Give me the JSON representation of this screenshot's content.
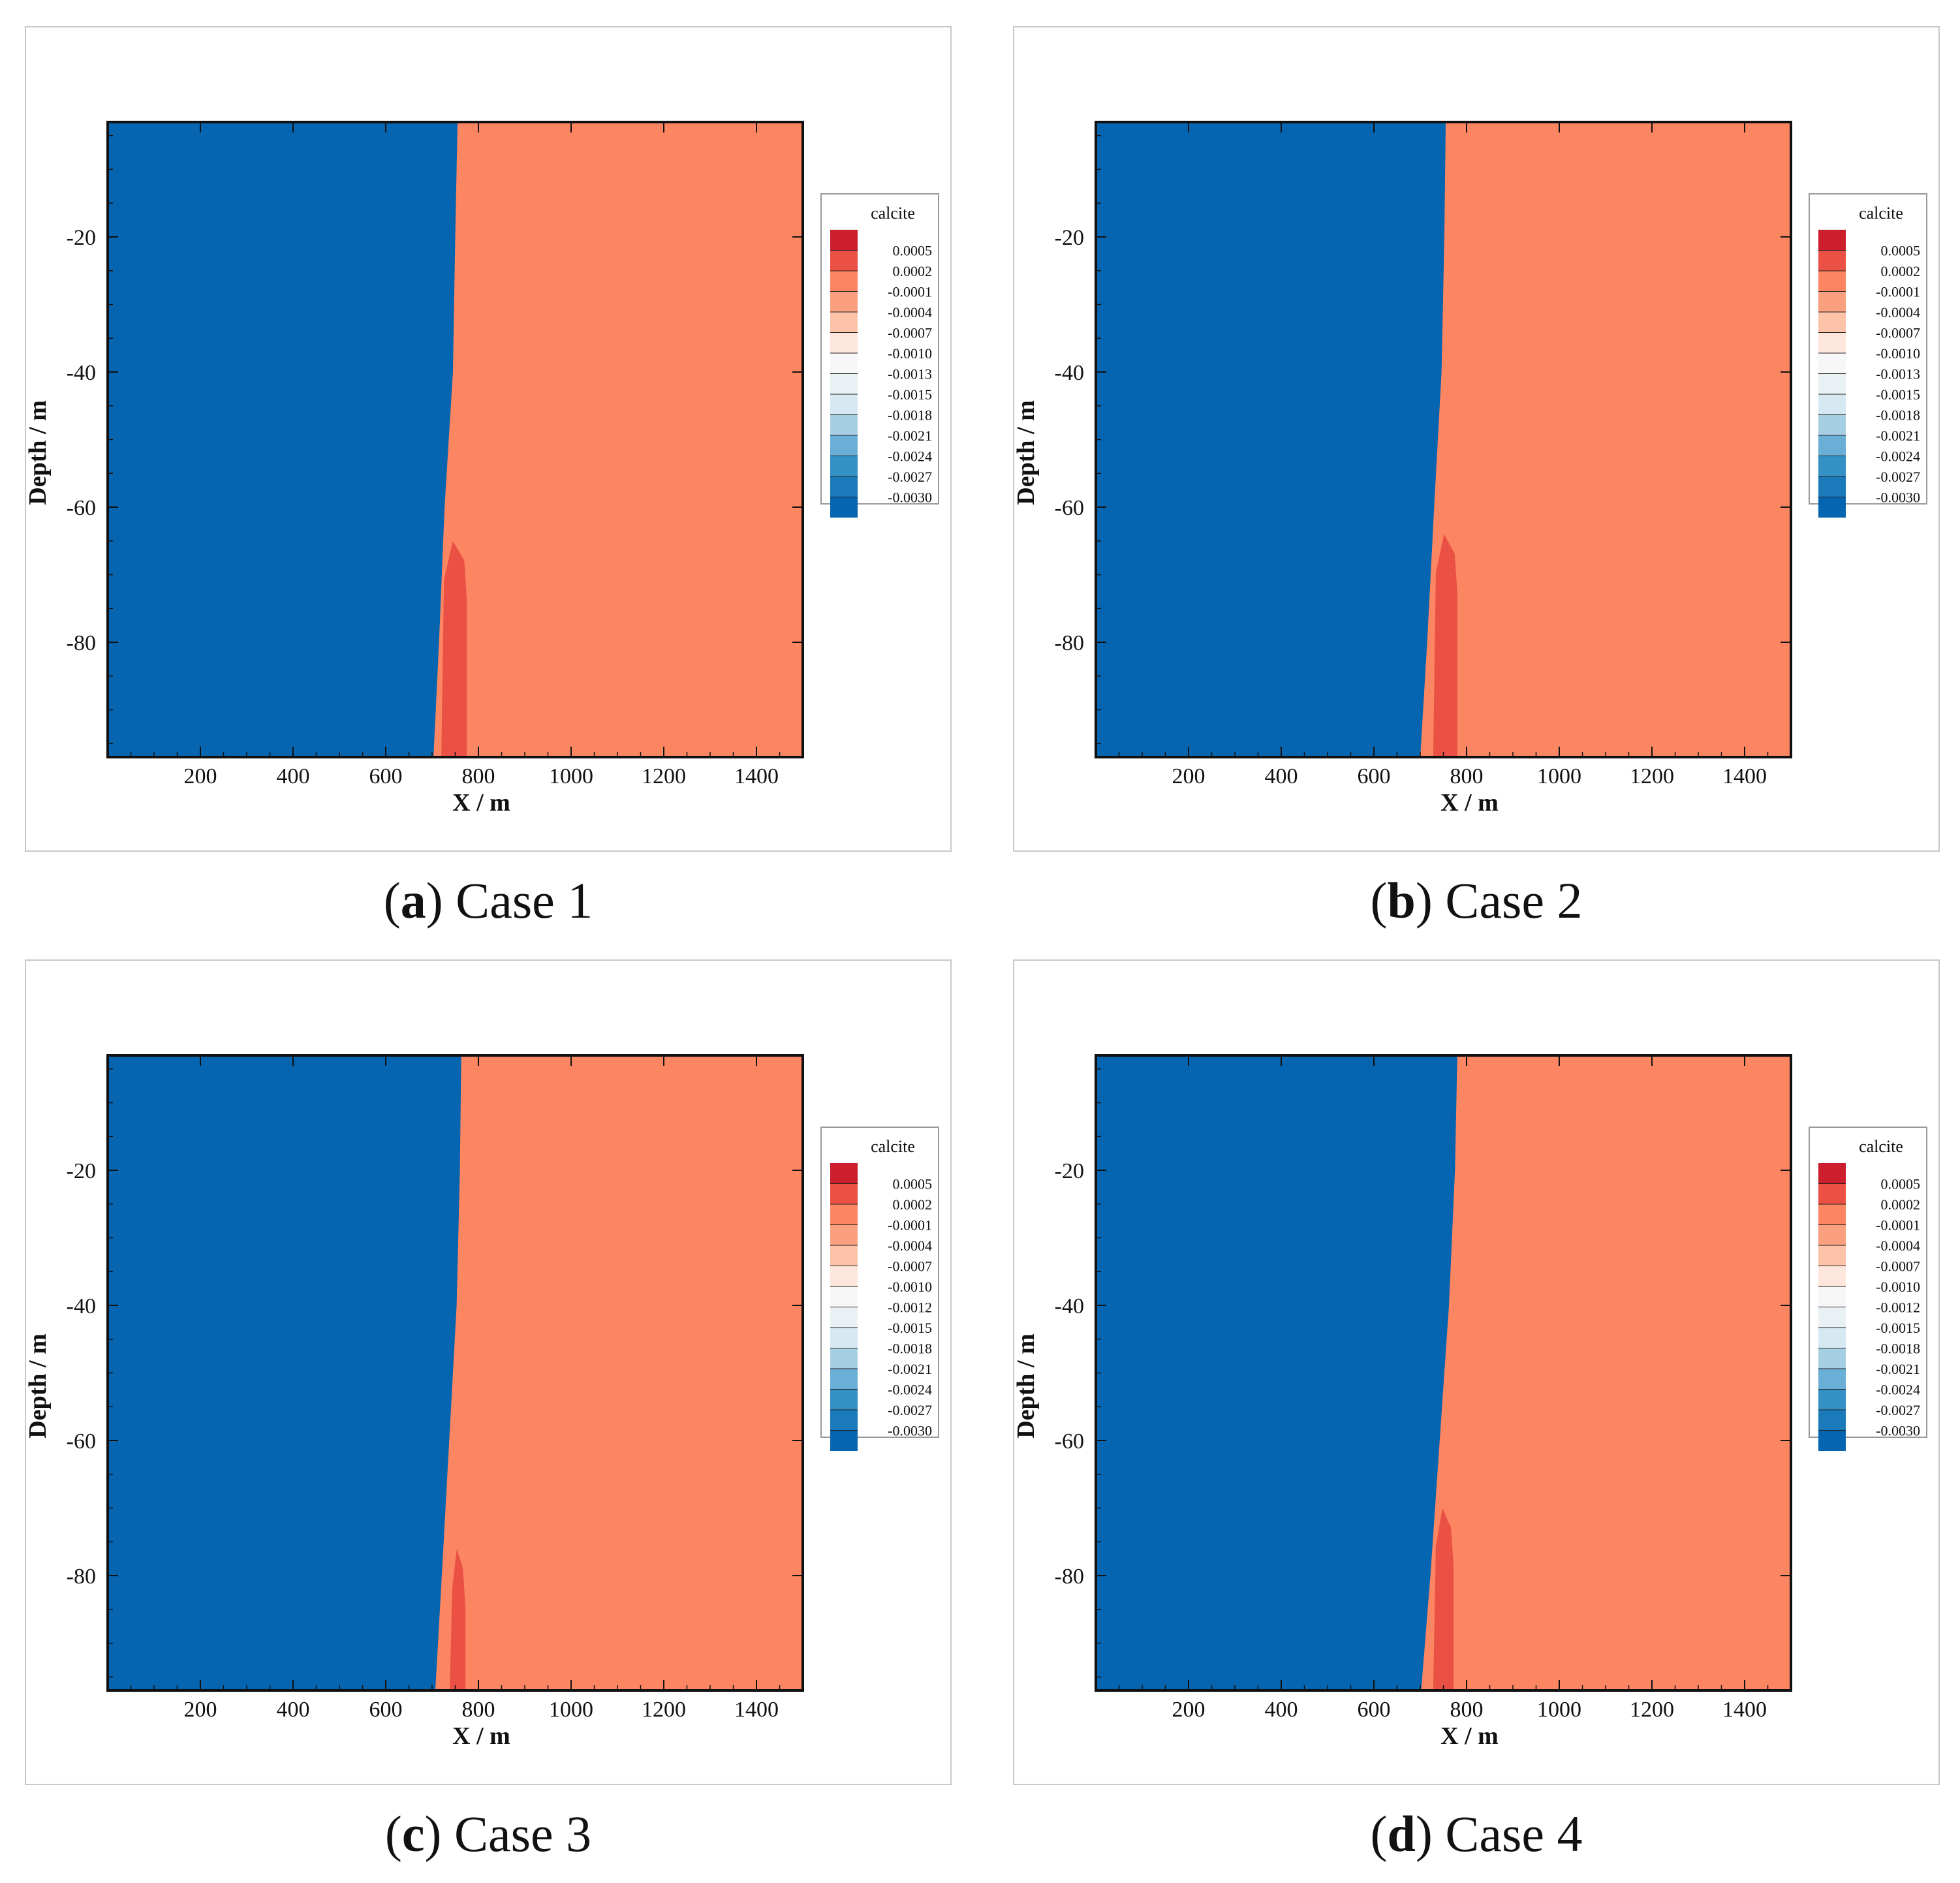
{
  "chart_data": [
    {
      "type": "heatmap",
      "variable": "calcite",
      "caption_letter": "a",
      "caption_text": " Case 1",
      "xlabel": "X / m",
      "ylabel": "Depth / m",
      "xlim": [
        0,
        1500
      ],
      "ylim": [
        -97,
        -3
      ],
      "xticks": [
        200,
        400,
        600,
        800,
        1000,
        1200,
        1400
      ],
      "yticks": [
        -20,
        -40,
        -60,
        -80
      ],
      "front_profile": [
        {
          "depth": -3,
          "x": 700
        },
        {
          "depth": -20,
          "x": 695
        },
        {
          "depth": -40,
          "x": 690
        },
        {
          "depth": -60,
          "x": 672
        },
        {
          "depth": -80,
          "x": 660
        },
        {
          "depth": -97,
          "x": 648
        }
      ],
      "front_halfwidth": 55,
      "high_zone": {
        "x_left": 720,
        "x_right": 775,
        "top_depth": -65,
        "bottom_depth": -97
      },
      "legend": {
        "title": "calcite",
        "levels": [
          "0.0005",
          "0.0002",
          "-0.0001",
          "-0.0004",
          "-0.0007",
          "-0.0010",
          "-0.0013",
          "-0.0015",
          "-0.0018",
          "-0.0021",
          "-0.0024",
          "-0.0027",
          "-0.0030"
        ]
      }
    },
    {
      "type": "heatmap",
      "variable": "calcite",
      "caption_letter": "b",
      "caption_text": " Case 2",
      "xlabel": "X / m",
      "ylabel": "Depth / m",
      "xlim": [
        0,
        1500
      ],
      "ylim": [
        -97,
        -3
      ],
      "xticks": [
        200,
        400,
        600,
        800,
        1000,
        1200,
        1400
      ],
      "yticks": [
        -20,
        -40,
        -60,
        -80
      ],
      "front_profile": [
        {
          "depth": -3,
          "x": 695
        },
        {
          "depth": -20,
          "x": 692
        },
        {
          "depth": -40,
          "x": 686
        },
        {
          "depth": -60,
          "x": 670
        },
        {
          "depth": -80,
          "x": 655
        },
        {
          "depth": -97,
          "x": 640
        }
      ],
      "front_halfwidth": 60,
      "high_zone": {
        "x_left": 728,
        "x_right": 780,
        "top_depth": -64,
        "bottom_depth": -97
      },
      "legend": {
        "title": "calcite",
        "levels": [
          "0.0005",
          "0.0002",
          "-0.0001",
          "-0.0004",
          "-0.0007",
          "-0.0010",
          "-0.0013",
          "-0.0015",
          "-0.0018",
          "-0.0021",
          "-0.0024",
          "-0.0027",
          "-0.0030"
        ]
      }
    },
    {
      "type": "heatmap",
      "variable": "calcite",
      "caption_letter": "c",
      "caption_text": " Case 3",
      "xlabel": "X / m",
      "ylabel": "Depth / m",
      "xlim": [
        0,
        1500
      ],
      "ylim": [
        -97,
        -3
      ],
      "xticks": [
        200,
        400,
        600,
        800,
        1000,
        1200,
        1400
      ],
      "yticks": [
        -20,
        -40,
        -60,
        -80
      ],
      "front_profile": [
        {
          "depth": -3,
          "x": 708
        },
        {
          "depth": -20,
          "x": 705
        },
        {
          "depth": -40,
          "x": 698
        },
        {
          "depth": -60,
          "x": 682
        },
        {
          "depth": -80,
          "x": 666
        },
        {
          "depth": -97,
          "x": 652
        }
      ],
      "front_halfwidth": 55,
      "high_zone": {
        "x_left": 738,
        "x_right": 772,
        "top_depth": -76,
        "bottom_depth": -97
      },
      "legend": {
        "title": "calcite",
        "levels": [
          "0.0005",
          "0.0002",
          "-0.0001",
          "-0.0004",
          "-0.0007",
          "-0.0010",
          "-0.0012",
          "-0.0015",
          "-0.0018",
          "-0.0021",
          "-0.0024",
          "-0.0027",
          "-0.0030"
        ]
      }
    },
    {
      "type": "heatmap",
      "variable": "calcite",
      "caption_letter": "d",
      "caption_text": " Case 4",
      "xlabel": "X / m",
      "ylabel": "Depth / m",
      "xlim": [
        0,
        1500
      ],
      "ylim": [
        -97,
        -3
      ],
      "xticks": [
        200,
        400,
        600,
        800,
        1000,
        1200,
        1400
      ],
      "yticks": [
        -20,
        -40,
        -60,
        -80
      ],
      "front_profile": [
        {
          "depth": -3,
          "x": 730
        },
        {
          "depth": -20,
          "x": 725
        },
        {
          "depth": -40,
          "x": 712
        },
        {
          "depth": -60,
          "x": 692
        },
        {
          "depth": -80,
          "x": 672
        },
        {
          "depth": -97,
          "x": 652
        }
      ],
      "front_halfwidth": 50,
      "high_zone": {
        "x_left": 728,
        "x_right": 772,
        "top_depth": -70,
        "bottom_depth": -97
      },
      "legend": {
        "title": "calcite",
        "levels": [
          "0.0005",
          "0.0002",
          "-0.0001",
          "-0.0004",
          "-0.0007",
          "-0.0010",
          "-0.0012",
          "-0.0015",
          "-0.0018",
          "-0.0021",
          "-0.0024",
          "-0.0027",
          "-0.0030"
        ]
      }
    }
  ],
  "colors": {
    "low": "#0565b0",
    "background_high": "#fc8562",
    "high_zone": "#ea5044",
    "band": [
      "#0565b0",
      "#1b7ab9",
      "#3391c6",
      "#6aafd6",
      "#a7cfe4",
      "#d6e8f1",
      "#f4f4f4",
      "#fde7dc",
      "#fcc3a9",
      "#fc8562"
    ],
    "legend": [
      "#cc1e2c",
      "#ea5044",
      "#fc8562",
      "#fba07e",
      "#fcc3a9",
      "#fde7dc",
      "#f7f7f7",
      "#eaf1f5",
      "#d6e8f1",
      "#a7cfe4",
      "#6aafd6",
      "#3391c6",
      "#1b7ab9",
      "#0565b0"
    ]
  }
}
